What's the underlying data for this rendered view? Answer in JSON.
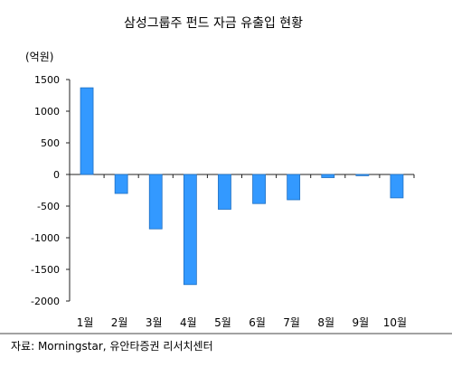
{
  "chart_data": {
    "type": "bar",
    "title": "삼성그룹주 펀드 자금 유출입 현황",
    "ylabel": "(억원)",
    "categories": [
      "1월",
      "2월",
      "3월",
      "4월",
      "5월",
      "6월",
      "7월",
      "8월",
      "9월",
      "10월"
    ],
    "series": [
      {
        "values": [
          1370,
          -300,
          -860,
          -1740,
          -550,
          -460,
          -400,
          -50,
          -20,
          -370
        ]
      }
    ],
    "ylim": [
      -2000,
      1500
    ],
    "yticks": [
      1500,
      1000,
      500,
      0,
      -500,
      -1000,
      -1500,
      -2000
    ],
    "ytick_labels": [
      "1500",
      "1000",
      "500",
      "0",
      "-500",
      "-1000",
      "-1500",
      "-2000"
    ],
    "grid": false,
    "legend": "none",
    "colors": {
      "bar": "#3399ff",
      "bar_edge": "#1f6fc2",
      "axis": "#222222"
    }
  },
  "source": "자료: Morningstar, 유안타증권 리서치센터"
}
